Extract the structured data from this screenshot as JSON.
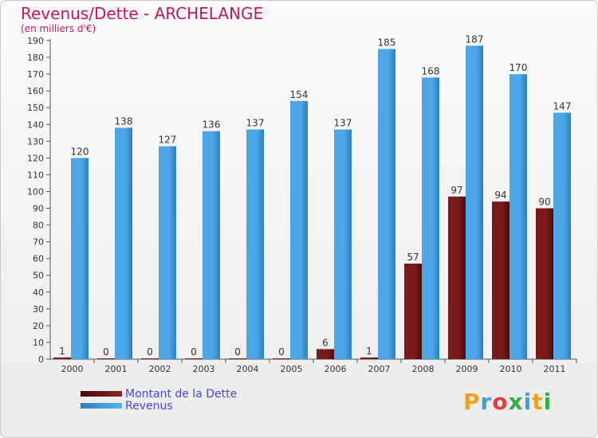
{
  "header": {
    "title": "Revenus/Dette - ARCHELANGE",
    "subtitle": "(en milliers d'€)"
  },
  "legend": {
    "debt_label": "Montant de la Dette",
    "revenue_label": "Revenus"
  },
  "logo": {
    "text": "Proxiti"
  },
  "colors": {
    "debt": "#7a1b1b",
    "debt_dark": "#4a0a0a",
    "revenue": "#4ea6e6",
    "revenue_dark": "#2a7fc4",
    "title": "#c2185b",
    "legend_text": "#4545e0"
  },
  "chart_data": {
    "type": "bar",
    "title": "Revenus/Dette - ARCHELANGE",
    "xlabel": "",
    "ylabel": "(en milliers d'€)",
    "ylim": [
      0,
      190
    ],
    "ytick_step": 10,
    "grid": false,
    "legend_position": "bottom-left",
    "categories": [
      "2000",
      "2001",
      "2002",
      "2003",
      "2004",
      "2005",
      "2006",
      "2007",
      "2008",
      "2009",
      "2010",
      "2011"
    ],
    "series": [
      {
        "name": "Montant de la Dette",
        "values": [
          1,
          0,
          0,
          0,
          0,
          0,
          6,
          1,
          57,
          97,
          94,
          90
        ]
      },
      {
        "name": "Revenus",
        "values": [
          120,
          138,
          127,
          136,
          137,
          154,
          137,
          185,
          168,
          187,
          170,
          147
        ]
      }
    ]
  }
}
